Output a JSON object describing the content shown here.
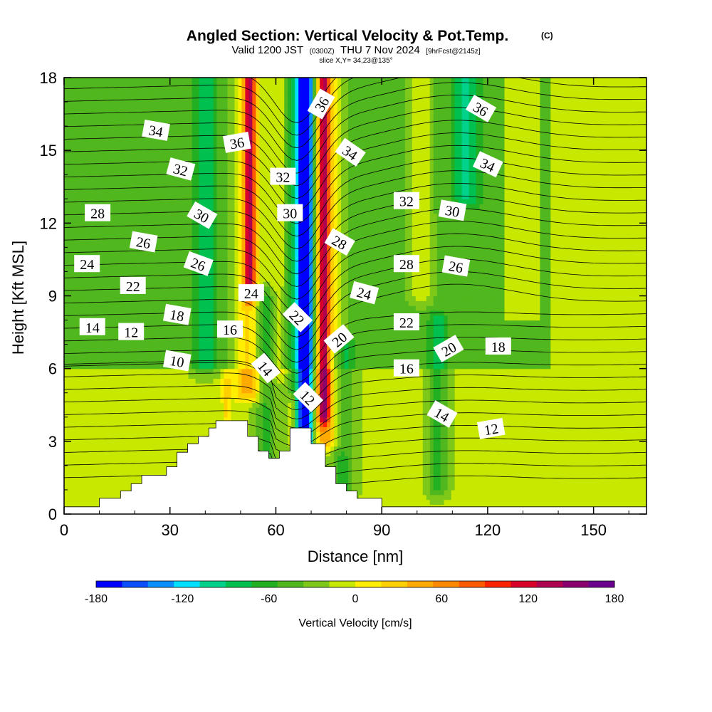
{
  "title": "Angled Section: Vertical Velocity & Pot.Temp.",
  "title_mark": "(C)",
  "subtitle_valid": "Valid 1200 JST",
  "subtitle_utc": "(0300Z)",
  "subtitle_date": "THU 7 Nov 2024",
  "subtitle_fcst": "[9hrFcst@2145z]",
  "slice_text": "slice X,Y= 34,23@135°",
  "colors": {
    "bands": [
      "#0000ff",
      "#0a4fff",
      "#0a8fff",
      "#00e0ff",
      "#00d28c",
      "#00c050",
      "#22b022",
      "#50b81e",
      "#7ec81a",
      "#c8e800",
      "#ffee00",
      "#ffd000",
      "#ffaa00",
      "#ff8a00",
      "#ff5a00",
      "#ff2200",
      "#d8002a",
      "#b00050",
      "#8a006e",
      "#6a008c"
    ],
    "terrain": "#ffffff"
  },
  "chart_data": {
    "type": "heatmap",
    "xlabel": "Distance [nm]",
    "ylabel": "Height [Kft MSL]",
    "xlim": [
      0,
      165
    ],
    "ylim": [
      0,
      18
    ],
    "x_ticks": [
      0,
      30,
      60,
      90,
      120,
      150
    ],
    "y_ticks": [
      0,
      3,
      6,
      9,
      12,
      15,
      18
    ],
    "x_tick_labels": [
      "0",
      "30",
      "60",
      "90",
      "120",
      "150"
    ],
    "y_tick_labels": [
      "0",
      "3",
      "6",
      "9",
      "12",
      "15",
      "18"
    ],
    "colorbar": {
      "title": "Vertical Velocity [cm/s]",
      "min": -180,
      "max": 180,
      "step": 20,
      "tick_values": [
        -180,
        -120,
        -60,
        0,
        60,
        120,
        180
      ],
      "tick_labels": [
        "-180",
        "-120",
        "-60",
        "0",
        "60",
        "120",
        "180"
      ]
    },
    "velocity_features": [
      {
        "x": 68.5,
        "y0": 0,
        "y1": 18,
        "width": 1.5,
        "value": -170
      },
      {
        "x": 67.5,
        "y0": 0,
        "y1": 18,
        "width": 3.2,
        "value": -110
      },
      {
        "x": 73.5,
        "y0": 4,
        "y1": 18,
        "width": 1.5,
        "value": 130
      },
      {
        "x": 74.5,
        "y0": 3,
        "y1": 18,
        "width": 3.6,
        "value": 80
      },
      {
        "x": 52.5,
        "y0": 9,
        "y1": 18,
        "width": 1.6,
        "value": 130
      },
      {
        "x": 52.5,
        "y0": 5,
        "y1": 18,
        "width": 4.2,
        "value": 70
      },
      {
        "x": 60.5,
        "y0": 6,
        "y1": 18,
        "width": 2.6,
        "value": 40
      },
      {
        "x": 40,
        "y0": 6,
        "y1": 18,
        "width": 3.5,
        "value": -50
      },
      {
        "x": 57,
        "y0": 2,
        "y1": 9,
        "width": 3,
        "value": -50
      },
      {
        "x": 79,
        "y0": 1,
        "y1": 7,
        "width": 3.5,
        "value": -50
      },
      {
        "x": 106,
        "y0": 1,
        "y1": 8,
        "width": 2.8,
        "value": -50
      },
      {
        "x": 114,
        "y0": 13,
        "y1": 18,
        "width": 4,
        "value": -60
      },
      {
        "x": 101,
        "y0": 9,
        "y1": 18,
        "width": 2.8,
        "value": 45
      },
      {
        "x": 46,
        "y0": 4,
        "y1": 5.5,
        "width": 1.2,
        "value": 40
      },
      {
        "x": 64.5,
        "y0": 3,
        "y1": 4.5,
        "width": 0.9,
        "value": 60
      }
    ],
    "background_bands": [
      {
        "y0": 0,
        "y1": 6,
        "value": 5
      },
      {
        "y0": 6,
        "y1": 18,
        "value": -25
      }
    ],
    "terrain": [
      [
        0,
        0.3
      ],
      [
        10,
        0.3
      ],
      [
        10,
        0.65
      ],
      [
        16,
        0.65
      ],
      [
        16,
        0.95
      ],
      [
        19,
        0.95
      ],
      [
        19,
        1.25
      ],
      [
        22,
        1.25
      ],
      [
        22,
        1.6
      ],
      [
        29,
        1.6
      ],
      [
        29,
        1.95
      ],
      [
        32,
        1.95
      ],
      [
        32,
        2.55
      ],
      [
        35,
        2.55
      ],
      [
        35,
        2.9
      ],
      [
        38,
        2.9
      ],
      [
        38,
        3.2
      ],
      [
        41,
        3.2
      ],
      [
        41,
        3.55
      ],
      [
        43,
        3.55
      ],
      [
        43,
        3.85
      ],
      [
        52,
        3.85
      ],
      [
        52,
        3.2
      ],
      [
        55,
        3.2
      ],
      [
        55,
        2.6
      ],
      [
        58,
        2.6
      ],
      [
        58,
        2.3
      ],
      [
        61,
        2.3
      ],
      [
        61,
        2.6
      ],
      [
        64,
        2.6
      ],
      [
        64,
        3.55
      ],
      [
        70,
        3.55
      ],
      [
        70,
        2.9
      ],
      [
        74,
        2.9
      ],
      [
        74,
        1.95
      ],
      [
        77,
        1.95
      ],
      [
        77,
        1.25
      ],
      [
        80,
        1.25
      ],
      [
        80,
        0.95
      ],
      [
        83,
        0.95
      ],
      [
        83,
        0.65
      ],
      [
        90,
        0.65
      ],
      [
        90,
        0.3
      ],
      [
        165,
        0.3
      ]
    ],
    "theta_labels": [
      {
        "text": "34",
        "x": 26,
        "y": 15.8,
        "rotation": 10
      },
      {
        "text": "36",
        "x": 49,
        "y": 15.3,
        "rotation": -10
      },
      {
        "text": "36",
        "x": 73,
        "y": 16.9,
        "rotation": -60
      },
      {
        "text": "36",
        "x": 118,
        "y": 16.7,
        "rotation": 30
      },
      {
        "text": "32",
        "x": 33,
        "y": 14.2,
        "rotation": 15
      },
      {
        "text": "32",
        "x": 62,
        "y": 13.9,
        "rotation": 0
      },
      {
        "text": "34",
        "x": 81,
        "y": 14.9,
        "rotation": 35
      },
      {
        "text": "34",
        "x": 120,
        "y": 14.4,
        "rotation": 25
      },
      {
        "text": "28",
        "x": 9.5,
        "y": 12.4,
        "rotation": 0
      },
      {
        "text": "30",
        "x": 39,
        "y": 12.3,
        "rotation": 30
      },
      {
        "text": "30",
        "x": 64,
        "y": 12.4,
        "rotation": 0
      },
      {
        "text": "32",
        "x": 97,
        "y": 12.9,
        "rotation": 0
      },
      {
        "text": "30",
        "x": 110,
        "y": 12.5,
        "rotation": 10
      },
      {
        "text": "26",
        "x": 22.5,
        "y": 11.2,
        "rotation": 10
      },
      {
        "text": "28",
        "x": 78,
        "y": 11.2,
        "rotation": 30
      },
      {
        "text": "24",
        "x": 6.5,
        "y": 10.3,
        "rotation": 0
      },
      {
        "text": "26",
        "x": 38,
        "y": 10.3,
        "rotation": 20
      },
      {
        "text": "28",
        "x": 97,
        "y": 10.3,
        "rotation": 0
      },
      {
        "text": "26",
        "x": 111,
        "y": 10.2,
        "rotation": 10
      },
      {
        "text": "22",
        "x": 19.5,
        "y": 9.4,
        "rotation": 0
      },
      {
        "text": "24",
        "x": 53,
        "y": 9.1,
        "rotation": 0
      },
      {
        "text": "24",
        "x": 85,
        "y": 9.1,
        "rotation": 15
      },
      {
        "text": "18",
        "x": 32,
        "y": 8.2,
        "rotation": 10
      },
      {
        "text": "22",
        "x": 66,
        "y": 8.1,
        "rotation": 45
      },
      {
        "text": "22",
        "x": 97,
        "y": 7.9,
        "rotation": 0
      },
      {
        "text": "14",
        "x": 8,
        "y": 7.7,
        "rotation": 0
      },
      {
        "text": "12",
        "x": 19,
        "y": 7.5,
        "rotation": 0
      },
      {
        "text": "16",
        "x": 47,
        "y": 7.6,
        "rotation": 0
      },
      {
        "text": "20",
        "x": 78,
        "y": 7.2,
        "rotation": -40
      },
      {
        "text": "20",
        "x": 109,
        "y": 6.8,
        "rotation": -30
      },
      {
        "text": "18",
        "x": 123,
        "y": 6.9,
        "rotation": 0
      },
      {
        "text": "10",
        "x": 32,
        "y": 6.3,
        "rotation": 10
      },
      {
        "text": "14",
        "x": 57,
        "y": 6.0,
        "rotation": 50
      },
      {
        "text": "16",
        "x": 97,
        "y": 6.0,
        "rotation": 0
      },
      {
        "text": "12",
        "x": 69,
        "y": 4.8,
        "rotation": 45
      },
      {
        "text": "14",
        "x": 107,
        "y": 4.1,
        "rotation": 30
      },
      {
        "text": "12",
        "x": 121,
        "y": 3.5,
        "rotation": -10
      }
    ],
    "grid": false,
    "legend": "bottom"
  }
}
